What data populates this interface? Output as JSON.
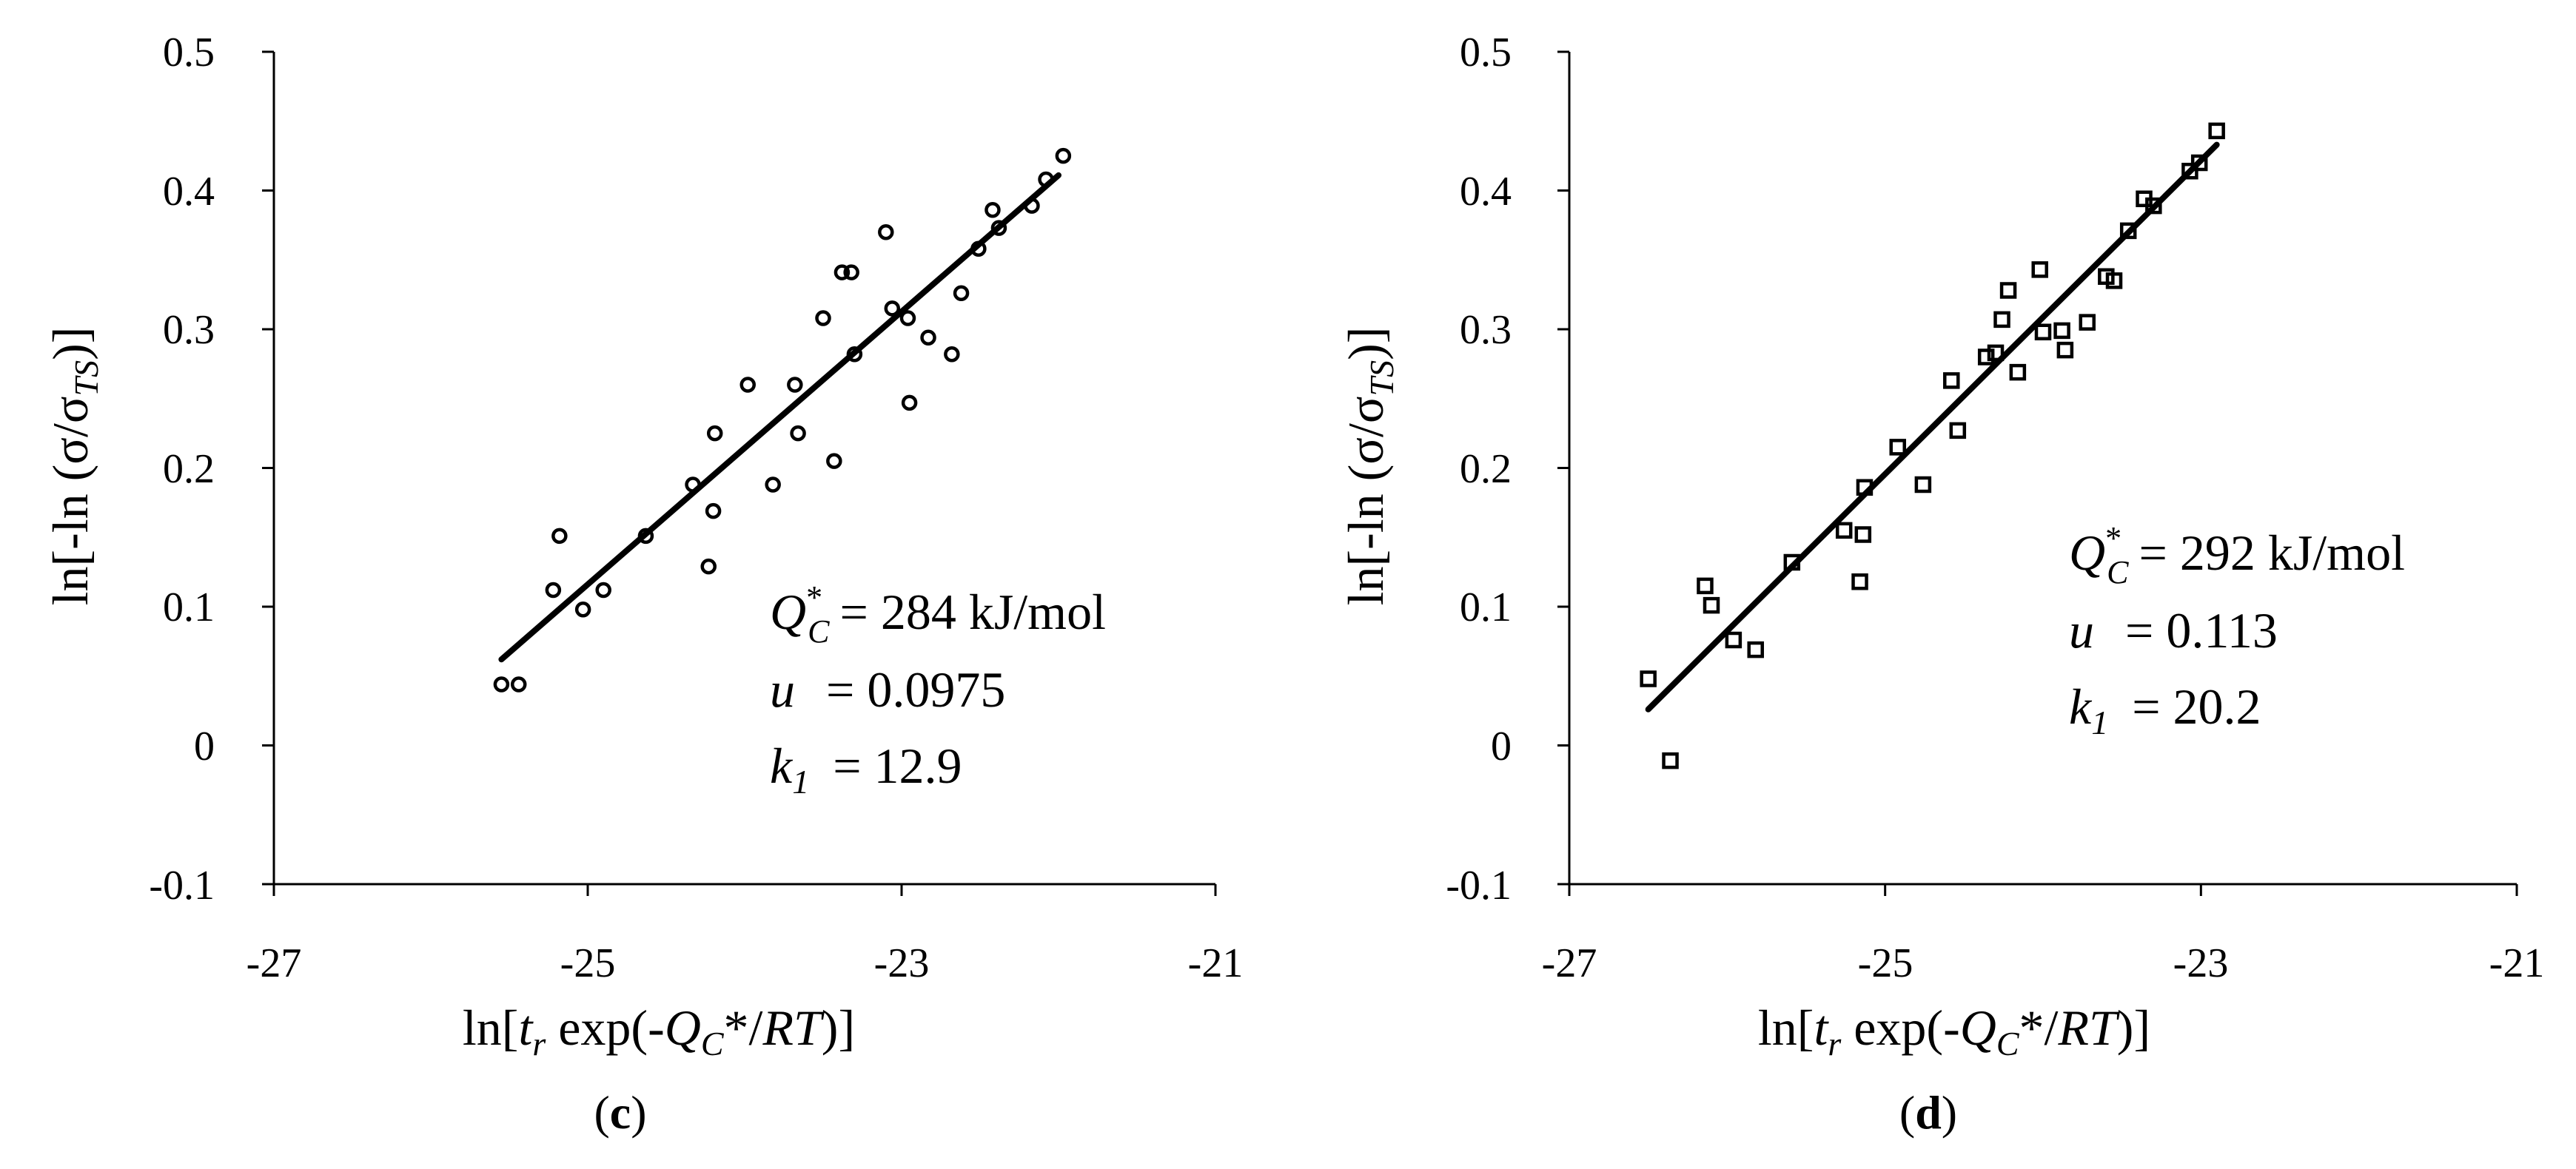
{
  "chart_data": [
    {
      "type": "scatter",
      "panel_label": "c",
      "marker": "circle",
      "xlabel": {
        "pre": "ln[",
        "t": "t",
        "tsub": "r",
        "mid": " exp(-",
        "Q": "Q",
        "Qsub": "C",
        "post1": "*/",
        "RT": "RT",
        "post2": ")]"
      },
      "ylabel": {
        "pre": "ln[-ln (σ/σ",
        "sub": "TS",
        "post": ")]"
      },
      "xlim": [
        -27,
        -21
      ],
      "ylim": [
        -0.1,
        0.5
      ],
      "xticks": [
        "-27",
        "-25",
        "-23",
        "-21"
      ],
      "xtick_values": [
        -27,
        -25,
        -23,
        -21
      ],
      "yticks": [
        "-0.1",
        "0",
        "0.1",
        "0.2",
        "0.3",
        "0.4",
        "0.5"
      ],
      "ytick_values": [
        -0.1,
        0,
        0.1,
        0.2,
        0.3,
        0.4,
        0.5
      ],
      "fit_line": {
        "x": [
          -25.55,
          -22.0
        ],
        "y": [
          0.062,
          0.411
        ]
      },
      "annotation": {
        "q_sym": "Q",
        "q_sup": "*",
        "q_sub": "C",
        "q_val": "= 284 kJ/mol",
        "u_sym": "u",
        "u_val": "= 0.0975",
        "k_sym": "k",
        "k_sub": "1",
        "k_val": "= 12.9"
      },
      "points": {
        "x": [
          -25.55,
          -25.44,
          -25.22,
          -25.18,
          -25.03,
          -24.9,
          -24.63,
          -24.33,
          -24.23,
          -24.2,
          -24.19,
          -23.98,
          -23.82,
          -23.68,
          -23.66,
          -23.5,
          -23.43,
          -23.38,
          -23.32,
          -23.3,
          -23.1,
          -23.06,
          -22.96,
          -22.95,
          -22.83,
          -22.68,
          -22.62,
          -22.51,
          -22.42,
          -22.38,
          -22.17,
          -22.08,
          -21.97
        ],
        "y": [
          0.044,
          0.044,
          0.112,
          0.151,
          0.098,
          0.112,
          0.151,
          0.188,
          0.129,
          0.169,
          0.225,
          0.26,
          0.188,
          0.26,
          0.225,
          0.308,
          0.205,
          0.341,
          0.341,
          0.282,
          0.37,
          0.315,
          0.308,
          0.247,
          0.294,
          0.282,
          0.326,
          0.358,
          0.386,
          0.373,
          0.389,
          0.408,
          0.425
        ]
      }
    },
    {
      "type": "scatter",
      "panel_label": "d",
      "marker": "square",
      "xlabel": {
        "pre": "ln[",
        "t": "t",
        "tsub": "r",
        "mid": " exp(-",
        "Q": "Q",
        "Qsub": "C",
        "post1": "*/",
        "RT": "RT",
        "post2": ")]"
      },
      "ylabel": {
        "pre": "ln[-ln (σ/σ",
        "sub": "TS",
        "post": ")]"
      },
      "xlim": [
        -27,
        -21
      ],
      "ylim": [
        -0.1,
        0.5
      ],
      "xticks": [
        "-27",
        "-25",
        "-23",
        "-21"
      ],
      "xtick_values": [
        -27,
        -25,
        -23,
        -21
      ],
      "yticks": [
        "-0.1",
        "0",
        "0.1",
        "0.2",
        "0.3",
        "0.4",
        "0.5"
      ],
      "ytick_values": [
        -0.1,
        0,
        0.1,
        0.2,
        0.3,
        0.4,
        0.5
      ],
      "fit_line": {
        "x": [
          -26.5,
          -22.9
        ],
        "y": [
          0.026,
          0.433
        ]
      },
      "annotation": {
        "q_sym": "Q",
        "q_sup": "*",
        "q_sub": "C",
        "q_val": "= 292 kJ/mol",
        "u_sym": "u",
        "u_val": "= 0.113",
        "k_sym": "k",
        "k_sub": "1",
        "k_val": "= 20.2"
      },
      "points": {
        "x": [
          -26.5,
          -26.36,
          -26.14,
          -26.1,
          -25.96,
          -25.82,
          -25.59,
          -25.26,
          -25.16,
          -25.14,
          -25.13,
          -24.92,
          -24.76,
          -24.58,
          -24.54,
          -24.36,
          -24.3,
          -24.26,
          -24.22,
          -24.16,
          -24.02,
          -24.0,
          -23.88,
          -23.86,
          -23.72,
          -23.6,
          -23.55,
          -23.46,
          -23.36,
          -23.3,
          -23.07,
          -23.01,
          -22.9
        ],
        "y": [
          0.048,
          -0.011,
          0.115,
          0.101,
          0.076,
          0.069,
          0.132,
          0.155,
          0.118,
          0.152,
          0.186,
          0.215,
          0.188,
          0.263,
          0.227,
          0.28,
          0.283,
          0.307,
          0.328,
          0.269,
          0.343,
          0.298,
          0.299,
          0.285,
          0.305,
          0.338,
          0.335,
          0.371,
          0.394,
          0.389,
          0.414,
          0.42,
          0.443
        ]
      }
    }
  ]
}
